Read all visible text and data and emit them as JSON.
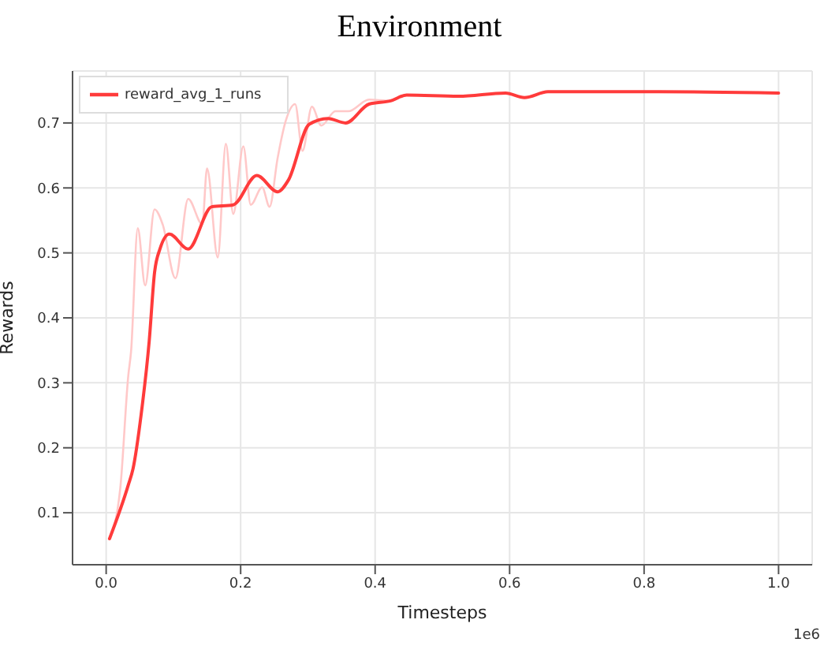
{
  "chart_data": {
    "type": "line",
    "title": "Environment",
    "xlabel": "Timesteps",
    "ylabel": "Rewards",
    "annotations": [
      "1e6"
    ],
    "xlim": [
      -0.05,
      1.05
    ],
    "xticks": [
      {
        "value": 0,
        "label": "0.0"
      },
      0.2,
      0.4,
      0.6,
      0.8,
      {
        "value": 1,
        "label": "1.0"
      }
    ],
    "ylim": [
      0.02,
      0.78
    ],
    "yticks": [
      0.1,
      0.2,
      0.3,
      0.4,
      0.5,
      0.6,
      0.7
    ],
    "grid": true,
    "legend": "top left",
    "marker": "none",
    "line_style": "solid",
    "series": [
      {
        "color": "#ffc8c8",
        "x": [
          0.005,
          0.021,
          0.033,
          0.037,
          0.047,
          0.058,
          0.072,
          0.084,
          0.103,
          0.122,
          0.143,
          0.15,
          0.166,
          0.178,
          0.189,
          0.204,
          0.215,
          0.232,
          0.243,
          0.255,
          0.267,
          0.281,
          0.292,
          0.306,
          0.32,
          0.341,
          0.36,
          0.391,
          0.423,
          0.447,
          0.524,
          0.594,
          0.622,
          0.657,
          0.821,
          1.0
        ],
        "values": [
          0.06,
          0.138,
          0.312,
          0.348,
          0.538,
          0.45,
          0.567,
          0.544,
          0.461,
          0.583,
          0.544,
          0.63,
          0.493,
          0.668,
          0.56,
          0.664,
          0.574,
          0.601,
          0.571,
          0.646,
          0.703,
          0.729,
          0.657,
          0.725,
          0.696,
          0.718,
          0.718,
          0.736,
          0.734,
          0.743,
          0.741,
          0.746,
          0.739,
          0.748,
          0.748,
          0.746
        ]
      },
      {
        "name": "reward_avg_1_runs",
        "color": "#ff3b3b",
        "x": [
          0.005,
          0.033,
          0.04,
          0.052,
          0.064,
          0.072,
          0.08,
          0.094,
          0.122,
          0.157,
          0.189,
          0.224,
          0.255,
          0.271,
          0.302,
          0.33,
          0.356,
          0.391,
          0.423,
          0.447,
          0.524,
          0.594,
          0.622,
          0.657,
          0.821,
          1.0
        ],
        "values": [
          0.06,
          0.143,
          0.168,
          0.251,
          0.364,
          0.47,
          0.506,
          0.529,
          0.506,
          0.571,
          0.574,
          0.619,
          0.594,
          0.612,
          0.698,
          0.707,
          0.7,
          0.729,
          0.734,
          0.743,
          0.741,
          0.746,
          0.739,
          0.748,
          0.748,
          0.746
        ]
      }
    ]
  }
}
